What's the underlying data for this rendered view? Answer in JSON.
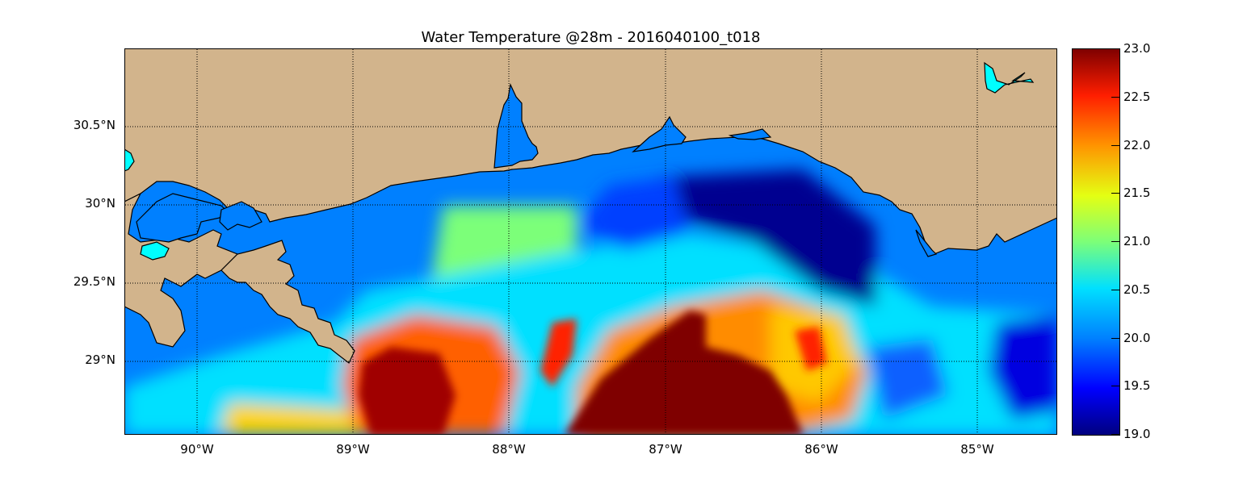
{
  "title": "Water Temperature @28m - 2016040100_t018",
  "lat_labels": [
    "30.5°N",
    "30°N",
    "29.5°N",
    "29°N"
  ],
  "lon_labels": [
    "90°W",
    "89°W",
    "88°W",
    "87°W",
    "86°W",
    "85°W"
  ],
  "colorbar": {
    "min": 19.0,
    "max": 23.0,
    "ticks": [
      "23.0",
      "22.5",
      "22.0",
      "21.5",
      "21.0",
      "20.5",
      "20.0",
      "19.5",
      "19.0"
    ],
    "colormap": "jet"
  },
  "colors": {
    "land": "#d2b48c",
    "lake": "#00ffff",
    "ocean_default": "#0080ff",
    "warm_core": "#7f0000"
  },
  "map": {
    "lon_range": [
      -90.5,
      -84.5
    ],
    "lat_range": [
      28.55,
      31.0
    ],
    "grid": true,
    "coastline": true
  }
}
